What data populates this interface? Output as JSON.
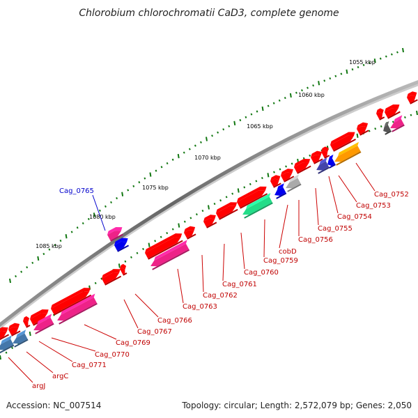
{
  "title": "Chlorobium chlorochromatii CaD3, complete genome",
  "footer": {
    "accession": "Accession: NC_007514",
    "topology": "Topology: circular; Length: 2,572,079 bp; Genes: 2,050"
  },
  "scale_labels": [
    "1055 kbp",
    "1060 kbp",
    "1065 kbp",
    "1070 kbp",
    "1075 kbp",
    "1080 kbp",
    "1085 kbp"
  ],
  "gene_labels": [
    "Cag_0765",
    "Cag_0752",
    "Cag_0753",
    "Cag_0754",
    "Cag_0755",
    "Cag_0756",
    "cobD",
    "Cag_0759",
    "Cag_0760",
    "Cag_0761",
    "Cag_0762",
    "Cag_0763",
    "Cag_0766",
    "Cag_0767",
    "Cag_0769",
    "Cag_0770",
    "Cag_0771",
    "argC",
    "argJ"
  ],
  "colors": {
    "backbone": "#777777",
    "gene_default": "#ff0000",
    "gene_pink": "#ee2288",
    "gene_blue": "#0000ee",
    "gene_steel": "#4477aa",
    "gene_green": "#22dd88",
    "gene_orange": "#ff9900",
    "gene_slate": "#4444aa",
    "gene_grey": "#aaaaaa",
    "gene_darkgrey": "#555555",
    "tick": "#117711",
    "label_red": "#cc0000",
    "label_blue": "#0000cc"
  }
}
